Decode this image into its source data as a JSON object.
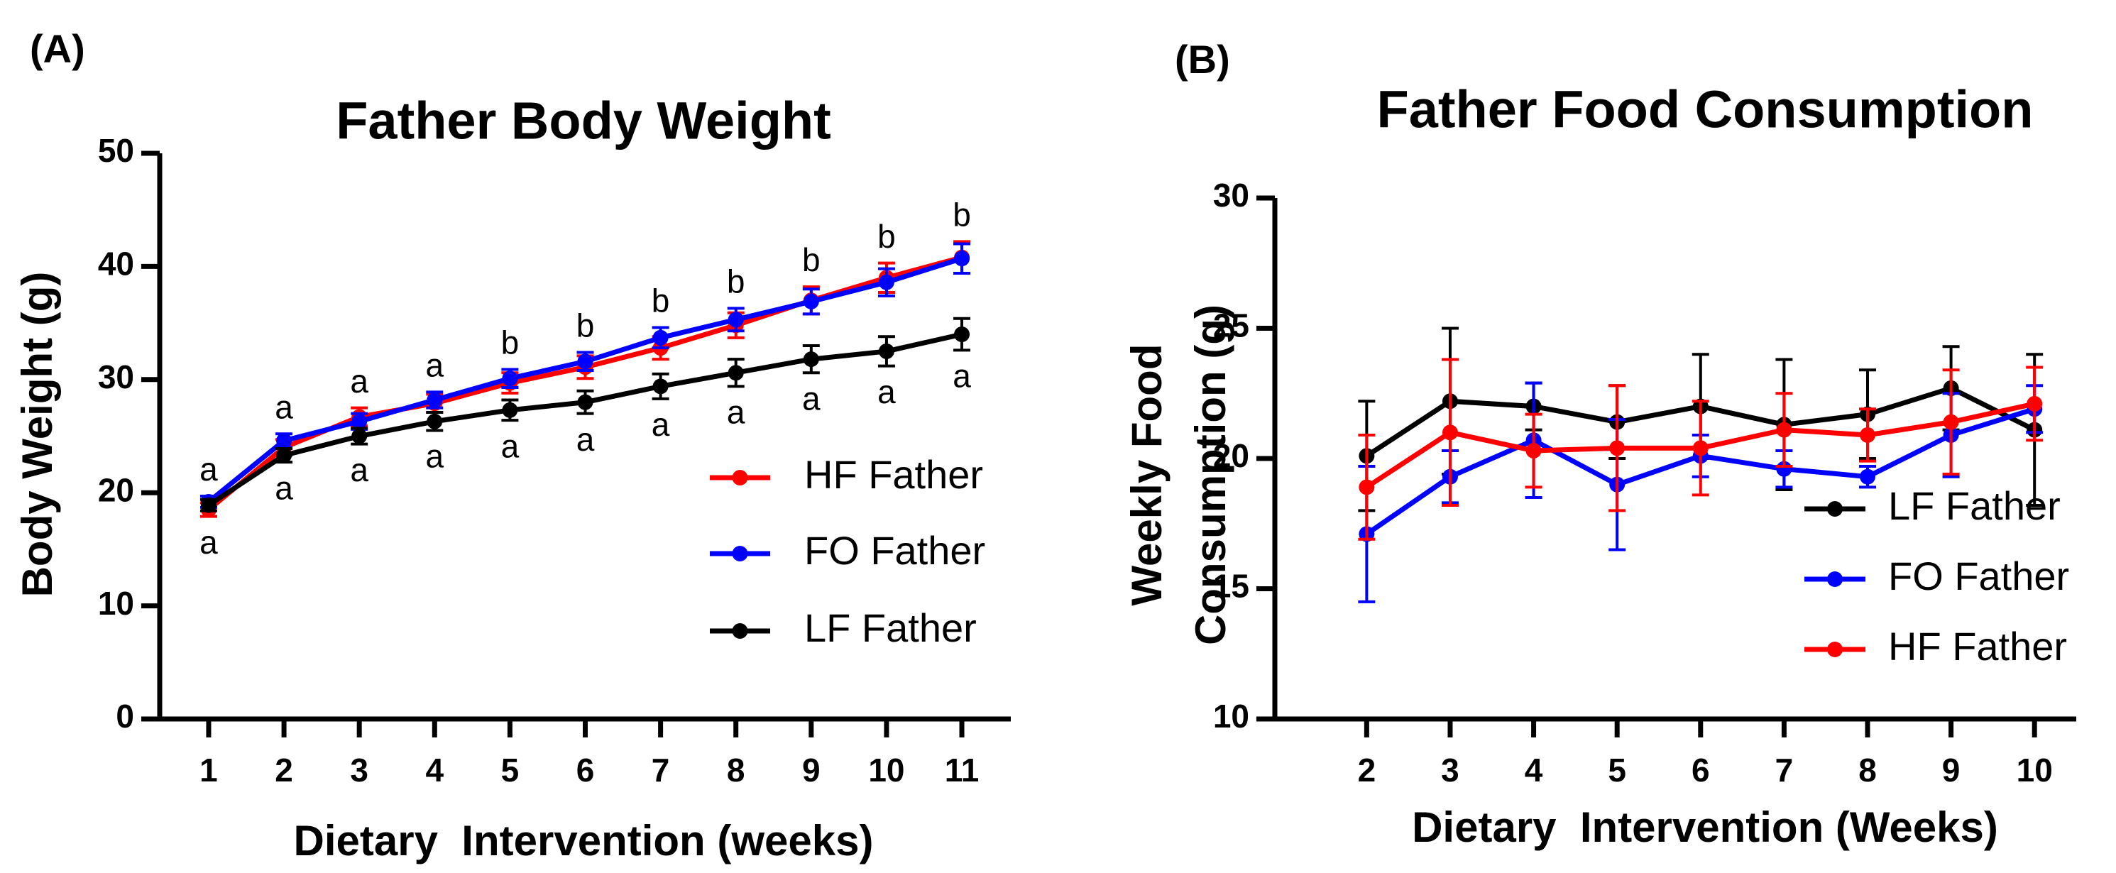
{
  "chart_data": [
    {
      "type": "line",
      "panel": "(A)",
      "title": "Father Body Weight",
      "xlabel": "Dietary  Intervention (weeks)",
      "ylabel": [
        "Body Weight (g)"
      ],
      "x": [
        1,
        2,
        3,
        4,
        5,
        6,
        7,
        8,
        9,
        10,
        11
      ],
      "xlim": [
        0.35,
        11.65
      ],
      "xticks": [
        1,
        2,
        3,
        4,
        5,
        6,
        7,
        8,
        9,
        10,
        11
      ],
      "ylim": [
        0,
        50
      ],
      "yticks": [
        0,
        10,
        20,
        30,
        40,
        50
      ],
      "series": [
        {
          "name": "HF Father",
          "color": "#ff0000",
          "values": [
            18.5,
            24.0,
            26.7,
            27.9,
            29.7,
            31.1,
            32.8,
            34.8,
            37.0,
            39.0,
            40.8
          ],
          "errors": [
            0.6,
            0.7,
            0.8,
            0.8,
            0.9,
            1.0,
            1.0,
            1.1,
            1.2,
            1.3,
            1.4
          ]
        },
        {
          "name": "FO Father",
          "color": "#0000ff",
          "values": [
            19.2,
            24.6,
            26.3,
            28.2,
            30.1,
            31.6,
            33.7,
            35.3,
            36.9,
            38.6,
            40.7
          ],
          "errors": [
            0.5,
            0.6,
            0.7,
            0.7,
            0.8,
            0.8,
            0.9,
            1.0,
            1.1,
            1.2,
            1.3
          ]
        },
        {
          "name": "LF Father",
          "color": "#000000",
          "values": [
            18.9,
            23.3,
            25.0,
            26.3,
            27.3,
            28.0,
            29.4,
            30.6,
            31.8,
            32.5,
            34.0
          ],
          "errors": [
            0.5,
            0.6,
            0.7,
            0.8,
            0.9,
            1.0,
            1.1,
            1.2,
            1.2,
            1.3,
            1.4
          ]
        }
      ],
      "upper_labels": [
        "a",
        "a",
        "a",
        "a",
        "b",
        "b",
        "b",
        "b",
        "b",
        "b",
        "b"
      ],
      "lower_labels": [
        "a",
        "a",
        "a",
        "a",
        "a",
        "a",
        "a",
        "a",
        "a",
        "a",
        "a"
      ]
    },
    {
      "type": "line",
      "panel": "(B)",
      "title": "Father Food Consumption",
      "xlabel": "Dietary  Intervention (Weeks)",
      "ylabel": [
        "Weekly Food",
        "Consumption (g)"
      ],
      "x": [
        2,
        3,
        4,
        5,
        6,
        7,
        8,
        9,
        10
      ],
      "xlim": [
        0.9,
        10.5
      ],
      "xticks": [
        2,
        3,
        4,
        5,
        6,
        7,
        8,
        9,
        10
      ],
      "ylim": [
        10,
        30
      ],
      "yticks": [
        10,
        15,
        20,
        25,
        30
      ],
      "series": [
        {
          "name": "LF Father",
          "color": "#000000",
          "values": [
            20.1,
            22.2,
            22.0,
            21.4,
            22.0,
            21.3,
            21.7,
            22.7,
            21.1
          ],
          "errors": [
            2.1,
            2.8,
            0.9,
            1.4,
            2.0,
            2.5,
            1.7,
            1.6,
            2.9
          ]
        },
        {
          "name": "FO Father",
          "color": "#0000ff",
          "values": [
            17.1,
            19.3,
            20.7,
            19.0,
            20.1,
            19.6,
            19.3,
            20.9,
            21.9
          ],
          "errors": [
            2.6,
            1.0,
            2.2,
            2.5,
            0.8,
            0.7,
            0.4,
            1.6,
            0.9
          ]
        },
        {
          "name": "HF Father",
          "color": "#ff0000",
          "values": [
            18.9,
            21.0,
            20.3,
            20.4,
            20.4,
            21.1,
            20.9,
            21.4,
            22.1
          ],
          "errors": [
            2.0,
            2.8,
            1.4,
            2.4,
            1.8,
            1.4,
            1.0,
            2.0,
            1.4
          ]
        }
      ]
    }
  ]
}
